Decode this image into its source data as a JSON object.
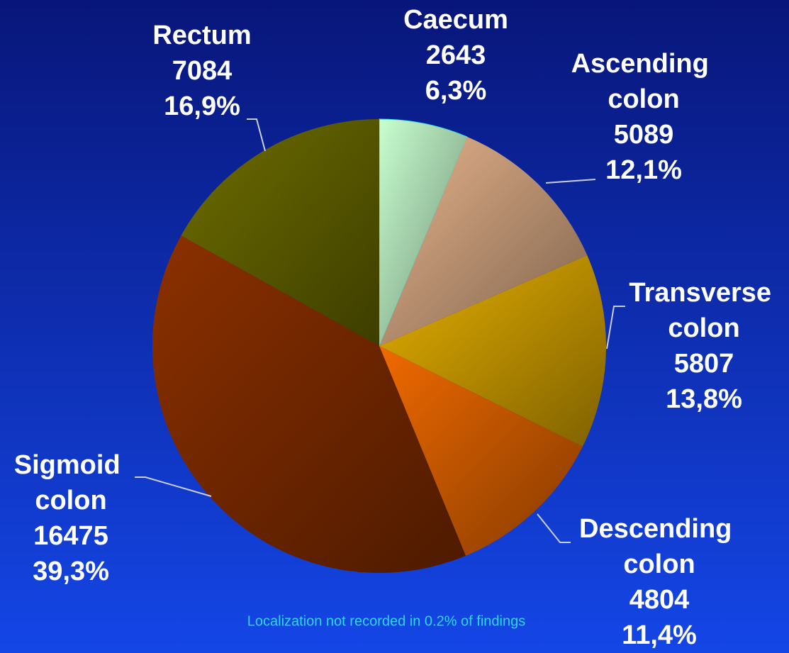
{
  "chart_data": {
    "type": "pie",
    "categories": [
      "Caecum",
      "Ascending colon",
      "Transverse colon",
      "Descending colon",
      "Sigmoid colon",
      "Rectum"
    ],
    "values": [
      2643,
      5089,
      5807,
      4804,
      16475,
      7084
    ],
    "value_labels": [
      "6,3%",
      "12,1%",
      "13,8%",
      "11,4%",
      "39,3%",
      "16,9%"
    ],
    "colors": [
      "#c8ffd0",
      "#e6b48c",
      "#e6b000",
      "#f06a00",
      "#8c3000",
      "#6e6e00"
    ],
    "note": "Localization not recorded in 0.2% of findings"
  }
}
